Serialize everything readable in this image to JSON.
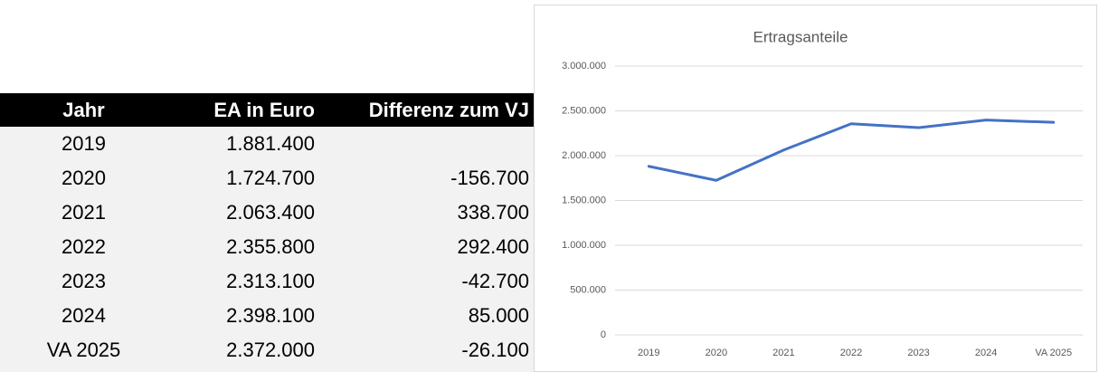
{
  "table": {
    "header": [
      "Jahr",
      "EA in Euro",
      "Differenz zum VJ"
    ],
    "rows": [
      [
        "2019",
        "1.881.400"
      ],
      [
        "2020",
        "1.724.700",
        "-156.700"
      ],
      [
        "2021",
        "2.063.400",
        "338.700"
      ],
      [
        "2022",
        "2.355.800",
        "292.400"
      ],
      [
        "2023",
        "2.313.100",
        "-42.700"
      ],
      [
        "2024",
        "2.398.100",
        "85.000"
      ],
      [
        "VA 2025",
        "2.372.000",
        "-26.100"
      ]
    ]
  },
  "chart_data": {
    "type": "line",
    "title": "Ertragsanteile",
    "categories": [
      "2019",
      "2020",
      "2021",
      "2022",
      "2023",
      "2024",
      "VA 2025"
    ],
    "series": [
      {
        "name": "Ertragsanteile",
        "color": "#4472c4",
        "values": [
          1881400,
          1724700,
          2063400,
          2355800,
          2313100,
          2398100,
          2372000
        ]
      }
    ],
    "ylim": [
      0,
      3000000
    ],
    "yticks": [
      0,
      {
        "value": 500000,
        "label": "500.000"
      },
      {
        "value": 1000000,
        "label": "1.000.000"
      },
      {
        "value": 1500000,
        "label": "1.500.000"
      },
      {
        "value": 2000000,
        "label": "2.000.000"
      },
      {
        "value": 2500000,
        "label": "2.500.000"
      },
      {
        "value": 3000000,
        "label": "3.000.000"
      }
    ],
    "grid": true
  }
}
